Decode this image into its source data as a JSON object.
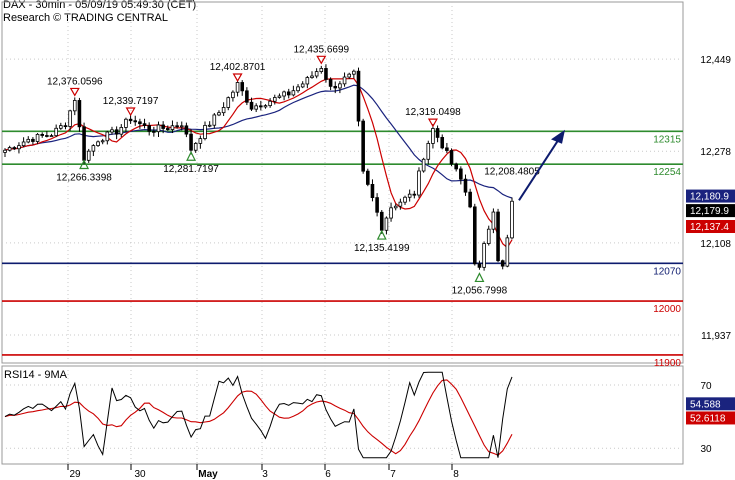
{
  "header": {
    "line1": "DAX - 30min - 05/09/19 05:49:30 (CET)",
    "line2": "Research © TRADING CENTRAL"
  },
  "chart_data": {
    "type": "candlestick",
    "price_axis": {
      "ticks": [
        "12,449",
        "12,278",
        "12,108",
        "11,937"
      ],
      "tick_values": [
        12449,
        12278,
        12108,
        11937
      ],
      "ylim": [
        11885,
        12555
      ]
    },
    "date_axis": {
      "labels": [
        "29",
        "30",
        "May",
        "3",
        "6",
        "7",
        "8"
      ]
    },
    "price_series": [
      {
        "name": "price",
        "color": "#000000"
      },
      {
        "name": "ma-fast",
        "color": "#cc0000"
      },
      {
        "name": "ma-slow",
        "color": "#1a237e"
      }
    ],
    "key_levels": [
      {
        "label": "12315",
        "value": 12315,
        "color": "#2e8b2e"
      },
      {
        "label": "12254",
        "value": 12254,
        "color": "#2e8b2e"
      },
      {
        "label": "12070",
        "value": 12070,
        "color": "#0d1b6e"
      },
      {
        "label": "12000",
        "value": 12000,
        "color": "#cc0000"
      },
      {
        "label": "11900",
        "value": 11900,
        "color": "#cc0000"
      }
    ],
    "annotations": [
      {
        "text": "12,376.0596",
        "value": 12376.0596,
        "type": "high"
      },
      {
        "text": "12,339.7197",
        "value": 12339.7197,
        "type": "high"
      },
      {
        "text": "12,402.8701",
        "value": 12402.8701,
        "type": "high"
      },
      {
        "text": "12,435.6699",
        "value": 12435.6699,
        "type": "high"
      },
      {
        "text": "12,319.0498",
        "value": 12319.0498,
        "type": "high"
      },
      {
        "text": "12,208.4805",
        "value": 12208.4805,
        "type": "high"
      },
      {
        "text": "12,266.3398",
        "value": 12266.3398,
        "type": "low"
      },
      {
        "text": "12,281.7197",
        "value": 12281.7197,
        "type": "low"
      },
      {
        "text": "12,135.4199",
        "value": 12135.4199,
        "type": "low"
      },
      {
        "text": "12,056.7998",
        "value": 12056.7998,
        "type": "low"
      }
    ],
    "price_badges": [
      {
        "text": "12,180.9",
        "value": 12180.9,
        "bg": "#1a237e",
        "fg": "#ffffff"
      },
      {
        "text": "12,179.9",
        "value": 12179.9,
        "bg": "#000000",
        "fg": "#ffffff"
      },
      {
        "text": "12,137.4",
        "value": 12137.4,
        "bg": "#cc0000",
        "fg": "#ffffff"
      }
    ],
    "rsi_panel": {
      "title": "RSI14 - 9MA",
      "ticks": [
        "70",
        "30"
      ],
      "tick_values": [
        70,
        30
      ],
      "ylim": [
        20,
        82
      ],
      "badges": [
        {
          "text": "54.588",
          "value": 54.588,
          "bg": "#1a237e",
          "fg": "#ffffff"
        },
        {
          "text": "52.6118",
          "value": 52.6118,
          "bg": "#cc0000",
          "fg": "#ffffff"
        }
      ]
    },
    "colors": {
      "bull": "#ffffff",
      "bear": "#000000",
      "arrow": "#0d1b6e",
      "triangle_high": "#cc0000",
      "triangle_low": "#2e8b2e",
      "grid": "#c9c9c9"
    }
  }
}
